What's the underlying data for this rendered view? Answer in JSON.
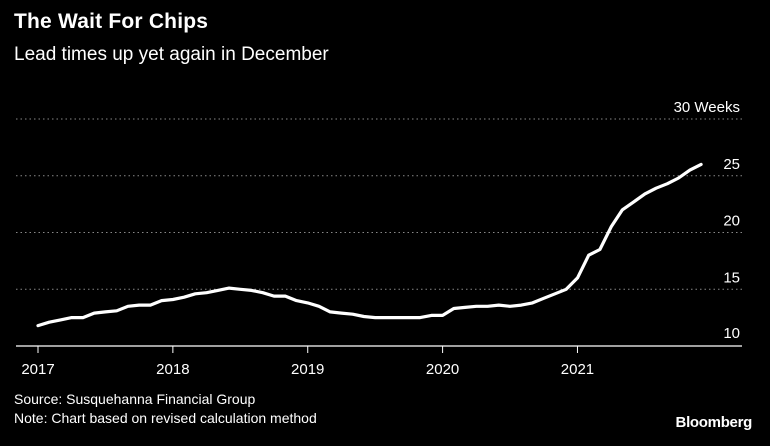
{
  "title": "The Wait For Chips",
  "subtitle": "Lead times up yet again in December",
  "source": "Source: Susquehanna Financial Group",
  "note": "Note: Chart based on revised calculation method",
  "brand": "Bloomberg",
  "colors": {
    "background": "#000000",
    "line": "#ffffff",
    "grid": "#888888"
  },
  "chart_data": {
    "type": "line",
    "title": "The Wait For Chips",
    "subtitle": "Lead times up yet again in December",
    "xlabel": "",
    "ylabel": "",
    "xlim": [
      2017.0,
      2021.97
    ],
    "ylim": [
      10,
      30
    ],
    "y_ticks": [
      {
        "value": 30,
        "label": "30 Weeks"
      },
      {
        "value": 25,
        "label": "25"
      },
      {
        "value": 20,
        "label": "20"
      },
      {
        "value": 15,
        "label": "15"
      },
      {
        "value": 10,
        "label": "10"
      }
    ],
    "x_ticks": [
      {
        "value": 2017,
        "label": "2017"
      },
      {
        "value": 2018,
        "label": "2018"
      },
      {
        "value": 2019,
        "label": "2019"
      },
      {
        "value": 2020,
        "label": "2020"
      },
      {
        "value": 2021,
        "label": "2021"
      }
    ],
    "grid": "horizontal-dotted",
    "legend": "none",
    "series": [
      {
        "x": [
          "2017-01",
          "2017-02",
          "2017-03",
          "2017-04",
          "2017-05",
          "2017-06",
          "2017-07",
          "2017-08",
          "2017-09",
          "2017-10",
          "2017-11",
          "2017-12",
          "2018-01",
          "2018-02",
          "2018-03",
          "2018-04",
          "2018-05",
          "2018-06",
          "2018-07",
          "2018-08",
          "2018-09",
          "2018-10",
          "2018-11",
          "2018-12",
          "2019-01",
          "2019-02",
          "2019-03",
          "2019-04",
          "2019-05",
          "2019-06",
          "2019-07",
          "2019-08",
          "2019-09",
          "2019-10",
          "2019-11",
          "2019-12",
          "2020-01",
          "2020-02",
          "2020-03",
          "2020-04",
          "2020-05",
          "2020-06",
          "2020-07",
          "2020-08",
          "2020-09",
          "2020-10",
          "2020-11",
          "2020-12",
          "2021-01",
          "2021-02",
          "2021-03",
          "2021-04",
          "2021-05",
          "2021-06",
          "2021-07",
          "2021-08",
          "2021-09",
          "2021-10",
          "2021-11",
          "2021-12"
        ],
        "values": [
          11.8,
          12.1,
          12.3,
          12.5,
          12.5,
          12.9,
          13.0,
          13.1,
          13.5,
          13.6,
          13.6,
          14.0,
          14.1,
          14.3,
          14.6,
          14.7,
          14.9,
          15.1,
          15.0,
          14.9,
          14.7,
          14.4,
          14.4,
          14.0,
          13.8,
          13.5,
          13.0,
          12.9,
          12.8,
          12.6,
          12.5,
          12.5,
          12.5,
          12.5,
          12.5,
          12.7,
          12.7,
          13.3,
          13.4,
          13.5,
          13.5,
          13.6,
          13.5,
          13.6,
          13.8,
          14.2,
          14.6,
          15.0,
          16.0,
          18.0,
          18.5,
          20.5,
          22.0,
          22.7,
          23.4,
          23.9,
          24.3,
          24.8,
          25.5,
          26.0
        ]
      }
    ]
  }
}
